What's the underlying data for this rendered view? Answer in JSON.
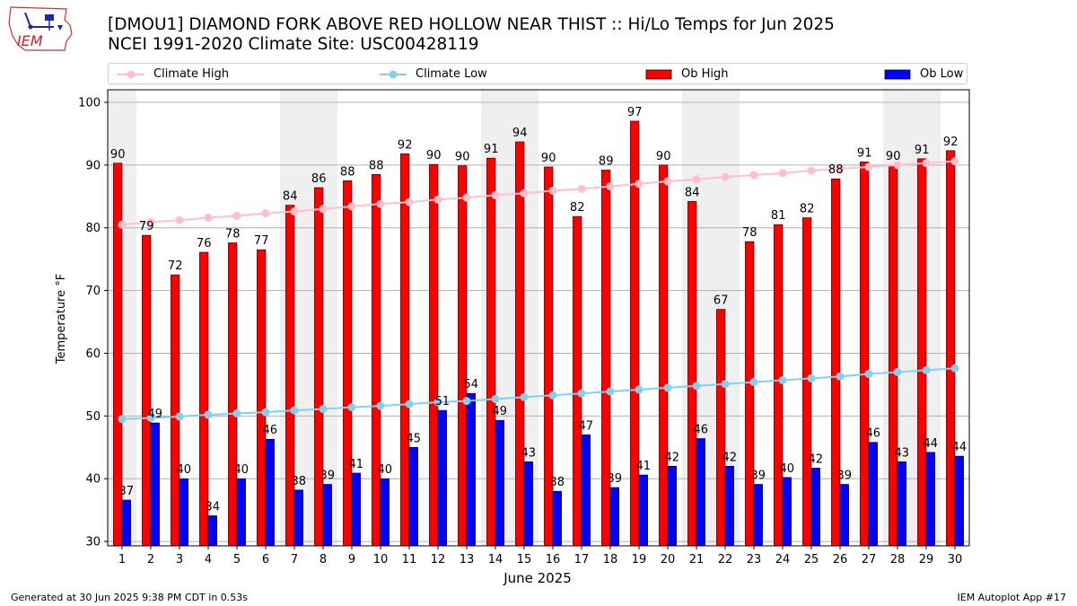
{
  "logo": {
    "text": "IEM"
  },
  "header": {
    "title_line1": "[DMOU1] DIAMOND FORK ABOVE RED HOLLOW NEAR THIST :: Hi/Lo Temps for Jun 2025",
    "title_line2": "NCEI 1991-2020 Climate Site: USC00428119"
  },
  "footer": {
    "generated": "Generated at 30 Jun 2025 9:38 PM CDT in 0.53s",
    "app": "IEM Autoplot App #17"
  },
  "colors": {
    "ob_high": "#ff0000",
    "ob_low": "#0000ff",
    "climate_high": "#ffc0cb",
    "climate_low": "#87ceeb",
    "weekend_shade": "#efefef",
    "grid": "#b0b0b0"
  },
  "chart_data": {
    "type": "bar",
    "title": "[DMOU1] DIAMOND FORK ABOVE RED HOLLOW NEAR THIST :: Hi/Lo Temps for Jun 2025",
    "subtitle": "NCEI 1991-2020 Climate Site: USC00428119",
    "xlabel": "June 2025",
    "ylabel": "Temperature °F",
    "ylim": [
      29.3,
      102.0
    ],
    "yticks": [
      30,
      40,
      50,
      60,
      70,
      80,
      90,
      100
    ],
    "grid": true,
    "legend_position": "top",
    "categories": [
      1,
      2,
      3,
      4,
      5,
      6,
      7,
      8,
      9,
      10,
      11,
      12,
      13,
      14,
      15,
      16,
      17,
      18,
      19,
      20,
      21,
      22,
      23,
      24,
      25,
      26,
      27,
      28,
      29,
      30
    ],
    "shaded_days": [
      1,
      7,
      8,
      14,
      15,
      21,
      22,
      28,
      29
    ],
    "series": [
      {
        "name": "Ob High",
        "kind": "bar",
        "values": [
          90.3,
          78.8,
          72.5,
          76.1,
          77.6,
          76.5,
          83.6,
          86.4,
          87.5,
          88.5,
          91.8,
          90.1,
          89.9,
          91.1,
          93.7,
          89.7,
          81.8,
          89.2,
          97.0,
          90.0,
          84.2,
          67.0,
          77.8,
          80.5,
          81.6,
          87.8,
          90.5,
          90.0,
          91.0,
          92.3
        ],
        "labels": [
          "90",
          "79",
          "72",
          "76",
          "78",
          "77",
          "84",
          "86",
          "88",
          "88",
          "92",
          "90",
          "90",
          "91",
          "94",
          "90",
          "82",
          "89",
          "97",
          "90",
          "84",
          "67",
          "78",
          "81",
          "82",
          "88",
          "91",
          "90",
          "91",
          "92"
        ]
      },
      {
        "name": "Ob Low",
        "kind": "bar",
        "values": [
          36.6,
          48.9,
          40.0,
          34.1,
          40.0,
          46.3,
          38.2,
          39.1,
          40.9,
          40.0,
          45.0,
          50.9,
          53.6,
          49.3,
          42.7,
          38.0,
          47.0,
          38.6,
          40.6,
          42.0,
          46.4,
          42.0,
          39.1,
          40.2,
          41.7,
          39.1,
          45.8,
          42.7,
          44.2,
          43.6
        ],
        "labels": [
          "37",
          "49",
          "40",
          "34",
          "40",
          "46",
          "38",
          "39",
          "41",
          "40",
          "45",
          "51",
          "54",
          "49",
          "43",
          "38",
          "47",
          "39",
          "41",
          "42",
          "46",
          "42",
          "39",
          "40",
          "42",
          "39",
          "46",
          "43",
          "44",
          "44"
        ]
      },
      {
        "name": "Climate High",
        "kind": "line",
        "values": [
          80.5,
          80.9,
          81.2,
          81.6,
          81.9,
          82.3,
          82.6,
          83.0,
          83.4,
          83.8,
          84.1,
          84.5,
          84.8,
          85.2,
          85.5,
          85.9,
          86.2,
          86.6,
          87.0,
          87.4,
          87.7,
          88.1,
          88.4,
          88.7,
          89.1,
          89.4,
          89.7,
          90.0,
          90.3,
          90.6
        ]
      },
      {
        "name": "Climate Low",
        "kind": "line",
        "values": [
          49.5,
          49.7,
          49.9,
          50.2,
          50.4,
          50.6,
          50.9,
          51.1,
          51.4,
          51.6,
          51.9,
          52.2,
          52.4,
          52.7,
          53.0,
          53.3,
          53.6,
          53.9,
          54.2,
          54.5,
          54.8,
          55.1,
          55.4,
          55.7,
          56.0,
          56.3,
          56.7,
          57.0,
          57.3,
          57.6
        ]
      }
    ]
  }
}
